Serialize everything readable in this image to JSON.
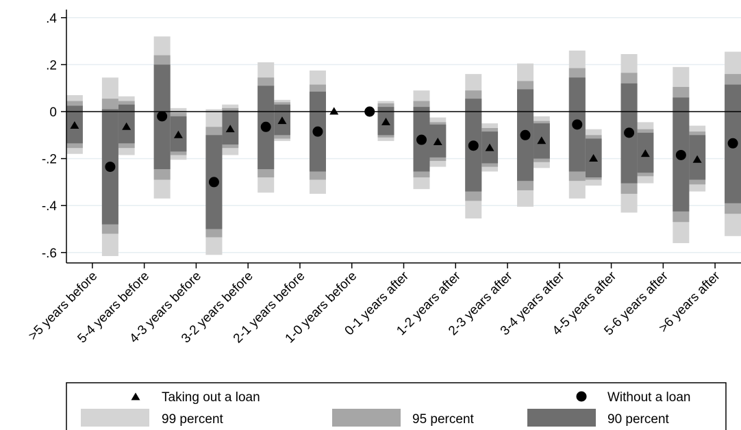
{
  "chart_data": {
    "type": "scatter",
    "title": "",
    "xlabel": "",
    "ylabel": "",
    "ylim": [
      -0.66,
      0.42
    ],
    "yticks": [
      0.4,
      0.2,
      0,
      -0.2,
      -0.4,
      -0.6
    ],
    "ytick_labels": [
      ".4",
      ".2",
      "0",
      "-.2",
      "-.4",
      "-.6"
    ],
    "grid": true,
    "reference_line": 0,
    "categories": [
      ">5 years before",
      "5-4 years before",
      "4-3 years before",
      "3-2 years before",
      "2-1 years before",
      "1-0 years before",
      "0-1 years after",
      "1-2 years after",
      "2-3 years after",
      "3-4 years after",
      "4-5 years after",
      "5-6 years after",
      ">6 years after"
    ],
    "series": [
      {
        "name": "Taking out a loan",
        "marker": "triangle",
        "values": [
          -0.06,
          -0.065,
          -0.1,
          -0.075,
          -0.04,
          0,
          -0.045,
          -0.13,
          -0.155,
          -0.125,
          -0.2,
          -0.18,
          -0.205
        ],
        "ci90": [
          [
            -0.135,
            0.025
          ],
          [
            -0.135,
            0.03
          ],
          [
            -0.17,
            -0.02
          ],
          [
            -0.14,
            0.005
          ],
          [
            -0.1,
            0.03
          ],
          [
            0,
            0
          ],
          [
            -0.1,
            0.02
          ],
          [
            -0.195,
            -0.055
          ],
          [
            -0.22,
            -0.085
          ],
          [
            -0.2,
            -0.05
          ],
          [
            -0.28,
            -0.115
          ],
          [
            -0.26,
            -0.09
          ],
          [
            -0.29,
            -0.1
          ]
        ],
        "ci95": [
          [
            -0.155,
            0.045
          ],
          [
            -0.155,
            0.045
          ],
          [
            -0.185,
            -0.005
          ],
          [
            -0.155,
            0.015
          ],
          [
            -0.115,
            0.04
          ],
          [
            0,
            0
          ],
          [
            -0.11,
            0.035
          ],
          [
            -0.21,
            -0.045
          ],
          [
            -0.235,
            -0.07
          ],
          [
            -0.215,
            -0.04
          ],
          [
            -0.29,
            -0.1
          ],
          [
            -0.275,
            -0.075
          ],
          [
            -0.31,
            -0.085
          ]
        ],
        "ci99": [
          [
            -0.18,
            0.07
          ],
          [
            -0.185,
            0.065
          ],
          [
            -0.205,
            0.015
          ],
          [
            -0.185,
            0.03
          ],
          [
            -0.125,
            0.05
          ],
          [
            0,
            0
          ],
          [
            -0.125,
            0.045
          ],
          [
            -0.235,
            -0.025
          ],
          [
            -0.255,
            -0.05
          ],
          [
            -0.24,
            -0.02
          ],
          [
            -0.315,
            -0.075
          ],
          [
            -0.305,
            -0.045
          ],
          [
            -0.34,
            -0.06
          ]
        ]
      },
      {
        "name": "Without a loan",
        "marker": "circle",
        "values": [
          -0.235,
          -0.02,
          -0.3,
          -0.065,
          -0.085,
          0,
          -0.12,
          -0.145,
          -0.1,
          -0.055,
          -0.09,
          -0.185,
          -0.135
        ],
        "ci90": [
          [
            -0.48,
            0.01
          ],
          [
            -0.245,
            0.2
          ],
          [
            -0.5,
            -0.1
          ],
          [
            -0.245,
            0.11
          ],
          [
            -0.255,
            0.085
          ],
          [
            0,
            0
          ],
          [
            -0.255,
            0.02
          ],
          [
            -0.34,
            0.055
          ],
          [
            -0.295,
            0.095
          ],
          [
            -0.255,
            0.145
          ],
          [
            -0.305,
            0.12
          ],
          [
            -0.425,
            0.06
          ],
          [
            -0.39,
            0.115
          ]
        ],
        "ci95": [
          [
            -0.52,
            0.055
          ],
          [
            -0.29,
            0.24
          ],
          [
            -0.535,
            -0.065
          ],
          [
            -0.28,
            0.145
          ],
          [
            -0.29,
            0.115
          ],
          [
            0,
            0
          ],
          [
            -0.28,
            0.045
          ],
          [
            -0.38,
            0.09
          ],
          [
            -0.335,
            0.13
          ],
          [
            -0.295,
            0.185
          ],
          [
            -0.35,
            0.165
          ],
          [
            -0.47,
            0.105
          ],
          [
            -0.435,
            0.16
          ]
        ],
        "ci99": [
          [
            -0.615,
            0.145
          ],
          [
            -0.37,
            0.32
          ],
          [
            -0.61,
            0.01
          ],
          [
            -0.345,
            0.21
          ],
          [
            -0.35,
            0.175
          ],
          [
            0,
            0
          ],
          [
            -0.33,
            0.09
          ],
          [
            -0.455,
            0.16
          ],
          [
            -0.405,
            0.205
          ],
          [
            -0.37,
            0.26
          ],
          [
            -0.43,
            0.245
          ],
          [
            -0.56,
            0.19
          ],
          [
            -0.53,
            0.255
          ]
        ]
      }
    ],
    "band_colors": {
      "ci99": "#d4d4d4",
      "ci95": "#a6a6a6",
      "ci90": "#6e6e6e"
    },
    "legend": {
      "placement": "bottom",
      "items": [
        {
          "key": "series0",
          "label": "Taking out a loan"
        },
        {
          "key": "series1",
          "label": "Without a loan"
        },
        {
          "key": "ci99",
          "label": "99 percent"
        },
        {
          "key": "ci95",
          "label": "95 percent"
        },
        {
          "key": "ci90",
          "label": "90 percent"
        }
      ]
    }
  }
}
